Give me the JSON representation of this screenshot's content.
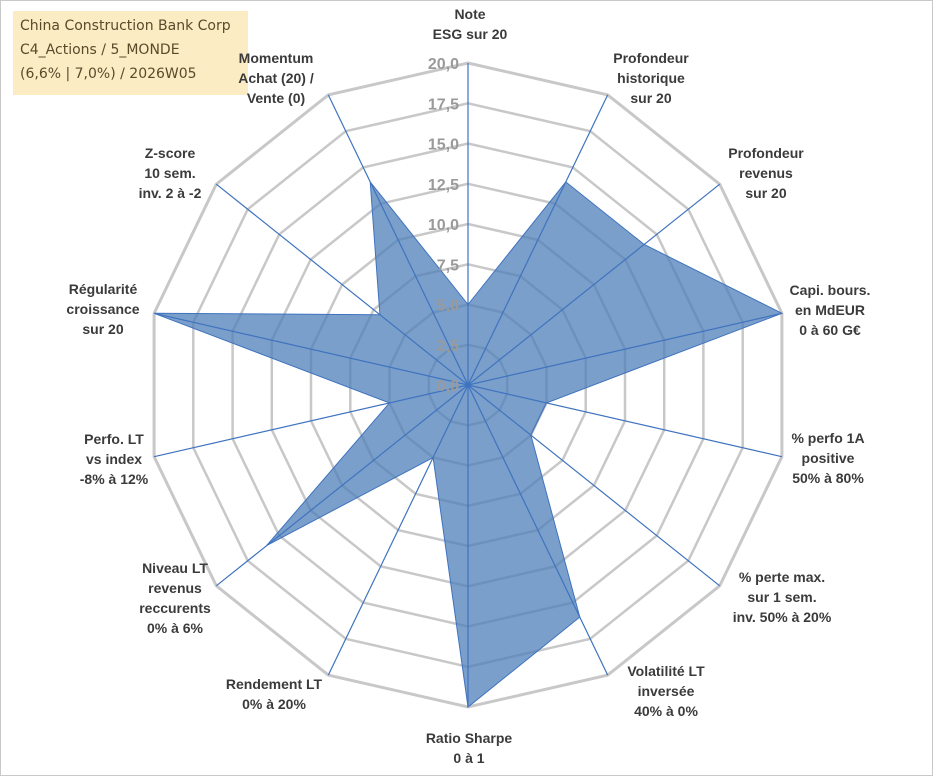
{
  "info": {
    "line1": "China Construction Bank Corp",
    "line2": "C4_Actions / 5_MONDE",
    "line3": "(6,6% | 7,0%) / 2026W05"
  },
  "colors": {
    "fill": "#4f7fba",
    "spoke": "#3f73bf",
    "grid": "#c8c8c8",
    "info_bg": "#fcecc4"
  },
  "chart_data": {
    "type": "radar",
    "title": "",
    "rmin": 0,
    "rmax": 20,
    "ticks": [
      "0,0",
      "2,5",
      "5,0",
      "7,5",
      "10,0",
      "12,5",
      "15,0",
      "17,5",
      "20,0"
    ],
    "tick_values": [
      0,
      2.5,
      5,
      7.5,
      10,
      12.5,
      15,
      17.5,
      20
    ],
    "grid": true,
    "axes": [
      [
        "Note",
        "ESG sur 20"
      ],
      [
        "Profondeur",
        "historique",
        "sur 20"
      ],
      [
        "Profondeur",
        "revenus",
        "sur 20"
      ],
      [
        "Capi. bours.",
        "en MdEUR",
        "0 à 60 G€"
      ],
      [
        "% perfo 1A",
        "positive",
        "50% à 80%"
      ],
      [
        "% perte max.",
        "sur 1 sem.",
        "inv. 50% à 20%"
      ],
      [
        "Volatilité LT",
        "inversée",
        "40% à 0%"
      ],
      [
        "Ratio Sharpe",
        "0 à 1"
      ],
      [
        "Rendement LT",
        "0% à 20%"
      ],
      [
        "Niveau LT",
        "revenus",
        "reccurents",
        "0% à 6%"
      ],
      [
        "Perfo. LT",
        "vs index",
        "-8% à 12%"
      ],
      [
        "Régularité",
        "croissance",
        "sur 20"
      ],
      [
        "Z-score",
        "10 sem.",
        "inv. 2 à -2"
      ],
      [
        "Momentum",
        "Achat (20) /",
        "Vente (0)"
      ]
    ],
    "series": [
      {
        "values": [
          5.0,
          14.0,
          14.0,
          20.0,
          5.0,
          5.0,
          16.0,
          20.0,
          5.0,
          16.0,
          5.0,
          20.0,
          7.0,
          14.0
        ]
      }
    ]
  }
}
